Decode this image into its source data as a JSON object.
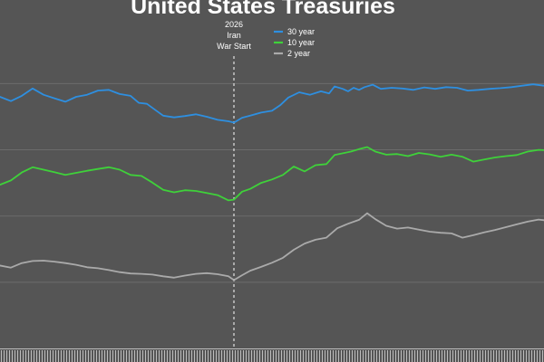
{
  "chart_data": {
    "type": "line",
    "title": "United States Treasuries",
    "xlabel": "",
    "ylabel": "",
    "x_range": [
      0,
      100
    ],
    "y_range": [
      0,
      100
    ],
    "grid": "horizontal",
    "legend_placement": "top-center",
    "event": {
      "x": 43,
      "label_lines": [
        "2026",
        "Iran",
        "War Start"
      ]
    },
    "series": [
      {
        "name": "30 year",
        "color": "#2e8fe0",
        "points": [
          [
            0,
            72.2
          ],
          [
            2,
            71
          ],
          [
            4,
            72.5
          ],
          [
            6,
            74.6
          ],
          [
            8,
            72.8
          ],
          [
            10,
            71.8
          ],
          [
            12,
            70.8
          ],
          [
            14,
            72.2
          ],
          [
            16,
            72.8
          ],
          [
            18,
            74
          ],
          [
            20,
            74.2
          ],
          [
            22,
            73
          ],
          [
            24,
            72.5
          ],
          [
            25.5,
            70.5
          ],
          [
            27,
            70.2
          ],
          [
            28.5,
            68.5
          ],
          [
            30,
            66.8
          ],
          [
            32,
            66.3
          ],
          [
            34,
            66.7
          ],
          [
            36,
            67.2
          ],
          [
            38,
            66.5
          ],
          [
            40,
            65.6
          ],
          [
            42,
            65.2
          ],
          [
            43,
            64.8
          ],
          [
            44.5,
            66.2
          ],
          [
            46,
            66.8
          ],
          [
            48,
            67.7
          ],
          [
            50,
            68.2
          ],
          [
            51.5,
            69.8
          ],
          [
            53,
            72
          ],
          [
            55,
            73.5
          ],
          [
            57,
            72.8
          ],
          [
            59,
            73.8
          ],
          [
            60.5,
            73.2
          ],
          [
            61.5,
            75.2
          ],
          [
            63,
            74.5
          ],
          [
            64,
            73.8
          ],
          [
            65,
            74.8
          ],
          [
            66,
            74.2
          ],
          [
            67,
            75
          ],
          [
            68.5,
            75.7
          ],
          [
            70,
            74.5
          ],
          [
            72,
            74.8
          ],
          [
            74,
            74.6
          ],
          [
            76,
            74.2
          ],
          [
            78,
            74.9
          ],
          [
            80,
            74.5
          ],
          [
            82,
            75
          ],
          [
            84,
            74.8
          ],
          [
            86,
            74
          ],
          [
            88,
            74.2
          ],
          [
            90,
            74.5
          ],
          [
            92,
            74.7
          ],
          [
            94,
            75
          ],
          [
            96,
            75.4
          ],
          [
            98,
            75.8
          ],
          [
            100,
            75.4
          ]
        ]
      },
      {
        "name": "10 year",
        "color": "#3fd13a",
        "points": [
          [
            0,
            47
          ],
          [
            2,
            48.2
          ],
          [
            4,
            50.5
          ],
          [
            6,
            52
          ],
          [
            8,
            51.3
          ],
          [
            10,
            50.6
          ],
          [
            12,
            49.8
          ],
          [
            14,
            50.4
          ],
          [
            16,
            51
          ],
          [
            18,
            51.5
          ],
          [
            20,
            52
          ],
          [
            22,
            51.3
          ],
          [
            24,
            49.8
          ],
          [
            26,
            49.5
          ],
          [
            28,
            47.6
          ],
          [
            30,
            45.5
          ],
          [
            32,
            44.8
          ],
          [
            34,
            45.4
          ],
          [
            36,
            45.2
          ],
          [
            38,
            44.6
          ],
          [
            40,
            44
          ],
          [
            42,
            42.5
          ],
          [
            43,
            42.7
          ],
          [
            44.5,
            45
          ],
          [
            46,
            45.8
          ],
          [
            48,
            47.5
          ],
          [
            50,
            48.5
          ],
          [
            52,
            49.8
          ],
          [
            54,
            52.2
          ],
          [
            56,
            50.8
          ],
          [
            58,
            52.6
          ],
          [
            60,
            52.9
          ],
          [
            61.5,
            55.5
          ],
          [
            63,
            56
          ],
          [
            64.5,
            56.5
          ],
          [
            66,
            57.2
          ],
          [
            67.5,
            57.8
          ],
          [
            69,
            56.5
          ],
          [
            71,
            55.6
          ],
          [
            73,
            55.8
          ],
          [
            75,
            55.2
          ],
          [
            77,
            56.1
          ],
          [
            79,
            55.7
          ],
          [
            81,
            55
          ],
          [
            83,
            55.6
          ],
          [
            85,
            55
          ],
          [
            87,
            53.6
          ],
          [
            89,
            54.2
          ],
          [
            91,
            54.8
          ],
          [
            93,
            55.2
          ],
          [
            95,
            55.5
          ],
          [
            97,
            56.5
          ],
          [
            99,
            57
          ],
          [
            100,
            56.9
          ]
        ]
      },
      {
        "name": "2 year",
        "color": "#aaaaaa",
        "points": [
          [
            0,
            23.8
          ],
          [
            2,
            23.2
          ],
          [
            4,
            24.5
          ],
          [
            6,
            25.1
          ],
          [
            8,
            25.2
          ],
          [
            10,
            24.9
          ],
          [
            12,
            24.5
          ],
          [
            14,
            24
          ],
          [
            16,
            23.3
          ],
          [
            18,
            23
          ],
          [
            20,
            22.5
          ],
          [
            22,
            21.9
          ],
          [
            24,
            21.5
          ],
          [
            26,
            21.4
          ],
          [
            28,
            21.2
          ],
          [
            30,
            20.7
          ],
          [
            32,
            20.3
          ],
          [
            34,
            20.9
          ],
          [
            36,
            21.4
          ],
          [
            38,
            21.6
          ],
          [
            40,
            21.3
          ],
          [
            42,
            20.7
          ],
          [
            43,
            19.6
          ],
          [
            44.5,
            21
          ],
          [
            46,
            22.3
          ],
          [
            48,
            23.4
          ],
          [
            50,
            24.6
          ],
          [
            52,
            26
          ],
          [
            54,
            28.3
          ],
          [
            56,
            30.1
          ],
          [
            58,
            31.2
          ],
          [
            60,
            31.8
          ],
          [
            62,
            34.5
          ],
          [
            64,
            35.8
          ],
          [
            66,
            36.9
          ],
          [
            67.5,
            38.8
          ],
          [
            69,
            37.1
          ],
          [
            71,
            35.2
          ],
          [
            73,
            34.4
          ],
          [
            75,
            34.7
          ],
          [
            77,
            34.1
          ],
          [
            79,
            33.5
          ],
          [
            81,
            33.2
          ],
          [
            83,
            33
          ],
          [
            85,
            31.8
          ],
          [
            87,
            32.5
          ],
          [
            89,
            33.3
          ],
          [
            91,
            34
          ],
          [
            93,
            34.8
          ],
          [
            95,
            35.6
          ],
          [
            97,
            36.4
          ],
          [
            99,
            37
          ],
          [
            100,
            36.8
          ]
        ]
      }
    ]
  }
}
